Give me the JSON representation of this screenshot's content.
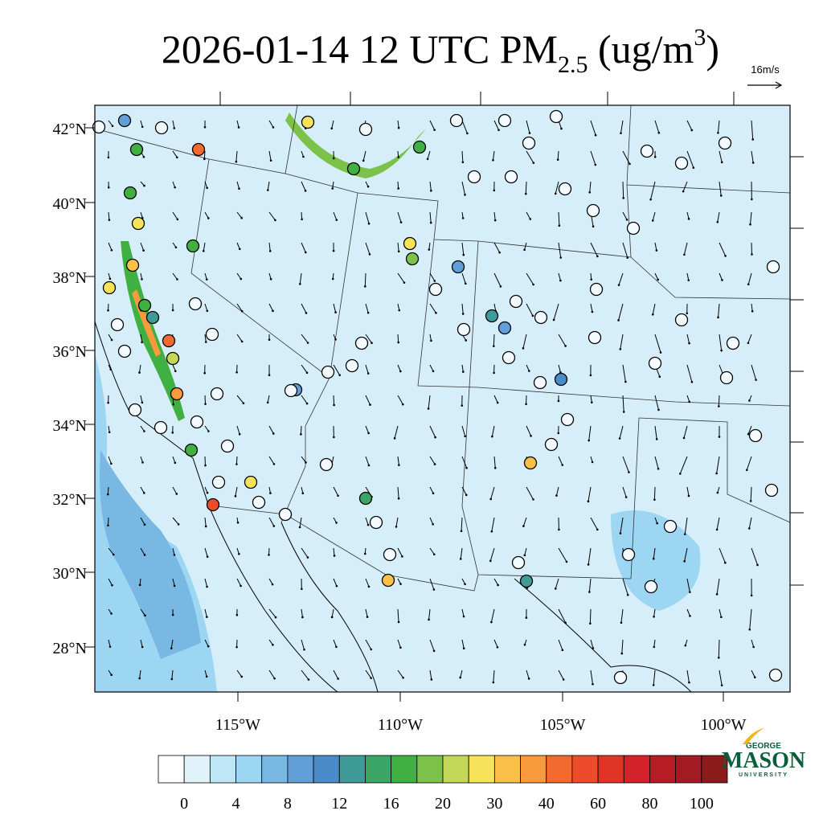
{
  "title": {
    "prefix": "2026-01-14 12 UTC PM",
    "subscript": "2.5",
    "middle": " (ug/m",
    "superscript": "3",
    "suffix": ")"
  },
  "vector_reference": "16m/s",
  "latitude_labels": [
    "42°N",
    "40°N",
    "38°N",
    "36°N",
    "34°N",
    "32°N",
    "30°N",
    "28°N"
  ],
  "longitude_labels": [
    "115°W",
    "110°W",
    "105°W",
    "100°W"
  ],
  "colorbar": {
    "labels": [
      "0",
      "4",
      "8",
      "12",
      "16",
      "20",
      "30",
      "40",
      "60",
      "80",
      "100"
    ],
    "colors": [
      "#ffffff",
      "#e0f3fb",
      "#bfe6f7",
      "#9dd6f2",
      "#7ab8e4",
      "#609fd8",
      "#4a8bc9",
      "#3f9b97",
      "#3ba565",
      "#41b043",
      "#7cc24a",
      "#c3d858",
      "#f7e35a",
      "#fbbf4a",
      "#f99a3d",
      "#f46a2e",
      "#ee4b2a",
      "#e03526",
      "#d4222a",
      "#b61c24",
      "#a31b22",
      "#8b1a1a"
    ]
  },
  "logo": {
    "top": "GEORGE",
    "main": "MASON",
    "bottom": "UNIVERSITY"
  }
}
